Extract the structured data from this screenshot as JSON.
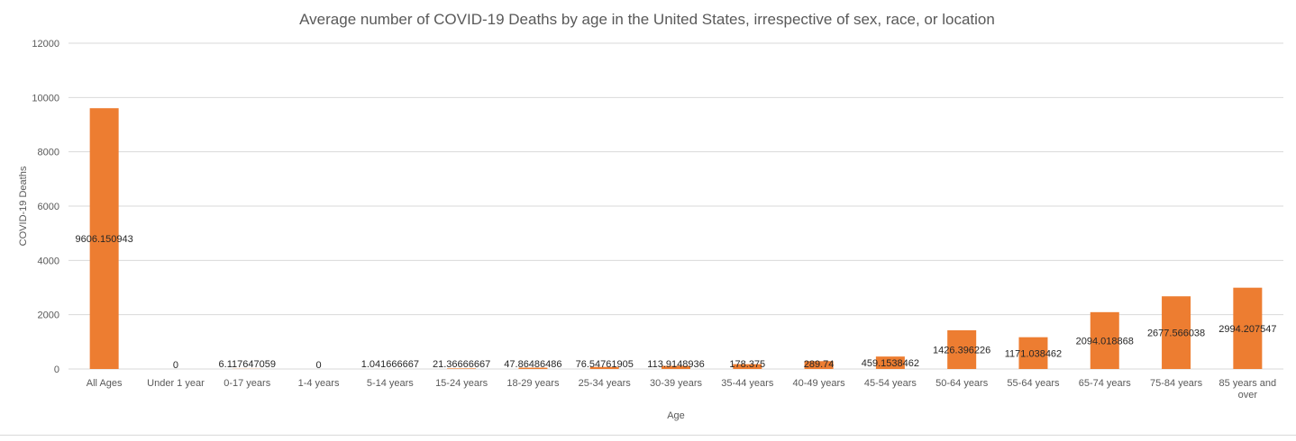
{
  "chart_data": {
    "type": "bar",
    "title": "Average number of COVID-19 Deaths by age in the United States, irrespective of sex, race, or location",
    "xlabel": "Age",
    "ylabel": "COVID-19 Deaths",
    "ylim": [
      0,
      12000
    ],
    "yticks": [
      "0",
      "2000",
      "4000",
      "6000",
      "8000",
      "10000",
      "12000"
    ],
    "grid": true,
    "legend": "none",
    "bar_color": "#ED7D31",
    "categories": [
      "All Ages",
      "Under 1 year",
      "0-17 years",
      "1-4 years",
      "5-14 years",
      "15-24 years",
      "18-29 years",
      "25-34 years",
      "30-39 years",
      "35-44 years",
      "40-49 years",
      "45-54 years",
      "50-64 years",
      "55-64 years",
      "65-74 years",
      "75-84 years",
      "85 years and over"
    ],
    "values": [
      9606.150943,
      0,
      6.117647059,
      0,
      1.041666667,
      21.36666667,
      47.86486486,
      76.54761905,
      113.9148936,
      178.375,
      289.74,
      459.1538462,
      1426.396226,
      1171.038462,
      2094.018868,
      2677.566038,
      2994.207547
    ],
    "data_labels": [
      "9606.150943",
      "0",
      "6.117647059",
      "0",
      "1.041666667",
      "21.36666667",
      "47.86486486",
      "76.54761905",
      "113.9148936",
      "178.375",
      "289.74",
      "459.1538462",
      "1426.396226",
      "1171.038462",
      "2094.018868",
      "2677.566038",
      "2994.207547"
    ]
  }
}
